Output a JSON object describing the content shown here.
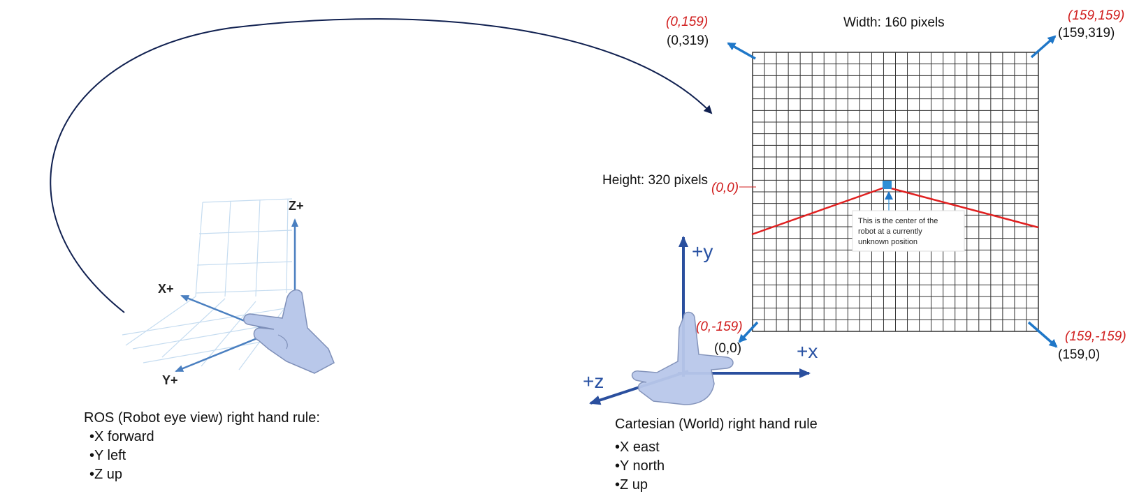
{
  "ros_panel": {
    "axis_x": "X+",
    "axis_y": "Y+",
    "axis_z": "Z+",
    "caption": "ROS (Robot eye view) right hand rule:",
    "bullets": [
      "•X forward",
      "•Y left",
      "•Z up"
    ]
  },
  "cartesian_panel": {
    "axis_x": "+x",
    "axis_y": "+y",
    "axis_z": "+z",
    "caption": "Cartesian (World) right hand rule",
    "bullets": [
      "•X east",
      "•Y north",
      "•Z up"
    ]
  },
  "grid": {
    "width_label": "Width: 160 pixels",
    "height_label": "Height: 320 pixels",
    "center_label": "(0,0)",
    "corner_top_left": {
      "red": "(0,159)",
      "black": "(0,319)"
    },
    "corner_top_right": {
      "red": "(159,159)",
      "black": "(159,319)"
    },
    "corner_bottom_left": {
      "red": "(0,-159)",
      "black": "(0,0)"
    },
    "corner_bottom_right": {
      "red": "(159,-159)",
      "black": "(159,0)"
    },
    "callout_lines": [
      "This is the center of the",
      "robot at a currently",
      "unknown position"
    ]
  },
  "colors": {
    "grid_line": "#333333",
    "red_line": "#e02020",
    "arrow_blue": "#1f77c8",
    "axis_blue": "#2a4f9e",
    "arc": "#102050",
    "label_red": "#d01c1c",
    "robot_marker": "#2e8ed6"
  }
}
